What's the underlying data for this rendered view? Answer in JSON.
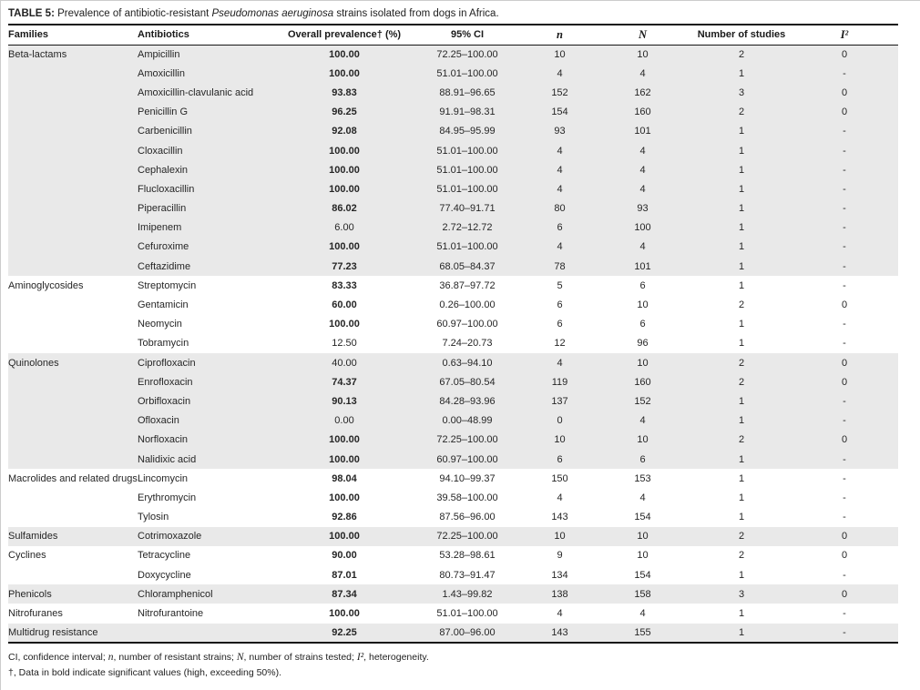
{
  "colors": {
    "stripe_gray": "#e9e9e9",
    "rule_black": "#161616",
    "text": "#262626"
  },
  "title": {
    "segments": [
      {
        "t": "TABLE 5:",
        "bold": true
      },
      {
        "t": " Prevalence of antibiotic-resistant "
      },
      {
        "t": "Pseudomonas aeruginosa",
        "italic": true
      },
      {
        "t": " strains isolated from dogs in Africa."
      }
    ]
  },
  "table": {
    "row_cell_order": [
      "antibiotic",
      "overall_prevalence_pct",
      "ci_95",
      "n",
      "N",
      "number_of_studies",
      "i2"
    ],
    "bold_rule": "prevalence values exceeding 50 are bold",
    "columns": [
      {
        "label": "Families"
      },
      {
        "label": "Antibiotics"
      },
      {
        "label": "Overall prevalence† (%)"
      },
      {
        "label": "95% CI"
      },
      {
        "label": "n",
        "math": true
      },
      {
        "label": "N",
        "math": true
      },
      {
        "label": "Number of studies"
      },
      {
        "label": "I²",
        "math": true
      }
    ],
    "groups": [
      {
        "family": "Beta-lactams",
        "rows": [
          [
            "Ampicillin",
            "100.00",
            "72.25–100.00",
            "10",
            "10",
            "2",
            "0"
          ],
          [
            "Amoxicillin",
            "100.00",
            "51.01–100.00",
            "4",
            "4",
            "1",
            "-"
          ],
          [
            "Amoxicillin-clavulanic acid",
            "93.83",
            "88.91–96.65",
            "152",
            "162",
            "3",
            "0"
          ],
          [
            "Penicillin G",
            "96.25",
            "91.91–98.31",
            "154",
            "160",
            "2",
            "0"
          ],
          [
            "Carbenicillin",
            "92.08",
            "84.95–95.99",
            "93",
            "101",
            "1",
            "-"
          ],
          [
            "Cloxacillin",
            "100.00",
            "51.01–100.00",
            "4",
            "4",
            "1",
            "-"
          ],
          [
            "Cephalexin",
            "100.00",
            "51.01–100.00",
            "4",
            "4",
            "1",
            "-"
          ],
          [
            "Flucloxacillin",
            "100.00",
            "51.01–100.00",
            "4",
            "4",
            "1",
            "-"
          ],
          [
            "Piperacillin",
            "86.02",
            "77.40–91.71",
            "80",
            "93",
            "1",
            "-"
          ],
          [
            "Imipenem",
            "6.00",
            "2.72–12.72",
            "6",
            "100",
            "1",
            "-"
          ],
          [
            "Cefuroxime",
            "100.00",
            "51.01–100.00",
            "4",
            "4",
            "1",
            "-"
          ],
          [
            "Ceftazidime",
            "77.23",
            "68.05–84.37",
            "78",
            "101",
            "1",
            "-"
          ]
        ]
      },
      {
        "family": "Aminoglycosides",
        "rows": [
          [
            "Streptomycin",
            "83.33",
            "36.87–97.72",
            "5",
            "6",
            "1",
            "-"
          ],
          [
            "Gentamicin",
            "60.00",
            "0.26–100.00",
            "6",
            "10",
            "2",
            "0"
          ],
          [
            "Neomycin",
            "100.00",
            "60.97–100.00",
            "6",
            "6",
            "1",
            "-"
          ],
          [
            "Tobramycin",
            "12.50",
            "7.24–20.73",
            "12",
            "96",
            "1",
            "-"
          ]
        ]
      },
      {
        "family": "Quinolones",
        "rows": [
          [
            "Ciprofloxacin",
            "40.00",
            "0.63–94.10",
            "4",
            "10",
            "2",
            "0"
          ],
          [
            "Enrofloxacin",
            "74.37",
            "67.05–80.54",
            "119",
            "160",
            "2",
            "0"
          ],
          [
            "Orbifloxacin",
            "90.13",
            "84.28–93.96",
            "137",
            "152",
            "1",
            "-"
          ],
          [
            "Ofloxacin",
            "0.00",
            "0.00–48.99",
            "0",
            "4",
            "1",
            "-"
          ],
          [
            "Norfloxacin",
            "100.00",
            "72.25–100.00",
            "10",
            "10",
            "2",
            "0"
          ],
          [
            "Nalidixic acid",
            "100.00",
            "60.97–100.00",
            "6",
            "6",
            "1",
            "-"
          ]
        ]
      },
      {
        "family": "Macrolides and related drugs",
        "rows": [
          [
            "Lincomycin",
            "98.04",
            "94.10–99.37",
            "150",
            "153",
            "1",
            "-"
          ],
          [
            "Erythromycin",
            "100.00",
            "39.58–100.00",
            "4",
            "4",
            "1",
            "-"
          ],
          [
            "Tylosin",
            "92.86",
            "87.56–96.00",
            "143",
            "154",
            "1",
            "-"
          ]
        ]
      },
      {
        "family": "Sulfamides",
        "rows": [
          [
            "Cotrimoxazole",
            "100.00",
            "72.25–100.00",
            "10",
            "10",
            "2",
            "0"
          ]
        ]
      },
      {
        "family": "Cyclines",
        "rows": [
          [
            "Tetracycline",
            "90.00",
            "53.28–98.61",
            "9",
            "10",
            "2",
            "0"
          ],
          [
            "Doxycycline",
            "87.01",
            "80.73–91.47",
            "134",
            "154",
            "1",
            "-"
          ]
        ]
      },
      {
        "family": "Phenicols",
        "rows": [
          [
            "Chloramphenicol",
            "87.34",
            "1.43–99.82",
            "138",
            "158",
            "3",
            "0"
          ]
        ]
      },
      {
        "family": "Nitrofuranes",
        "rows": [
          [
            "Nitrofurantoine",
            "100.00",
            "51.01–100.00",
            "4",
            "4",
            "1",
            "-"
          ]
        ]
      },
      {
        "family": "Multidrug resistance",
        "rows": [
          [
            "",
            "92.25",
            "87.00–96.00",
            "143",
            "155",
            "1",
            "-"
          ]
        ]
      }
    ]
  },
  "footnotes": [
    {
      "segments": [
        {
          "t": "CI, confidence interval; "
        },
        {
          "t": "n",
          "math": true
        },
        {
          "t": ", number of resistant strains; "
        },
        {
          "t": "N",
          "math": true
        },
        {
          "t": ", number of strains tested; "
        },
        {
          "t": "I²",
          "math": true
        },
        {
          "t": ", heterogeneity."
        }
      ]
    },
    {
      "segments": [
        {
          "t": "†, Data in bold indicate significant values (high, exceeding 50%)."
        }
      ]
    }
  ]
}
